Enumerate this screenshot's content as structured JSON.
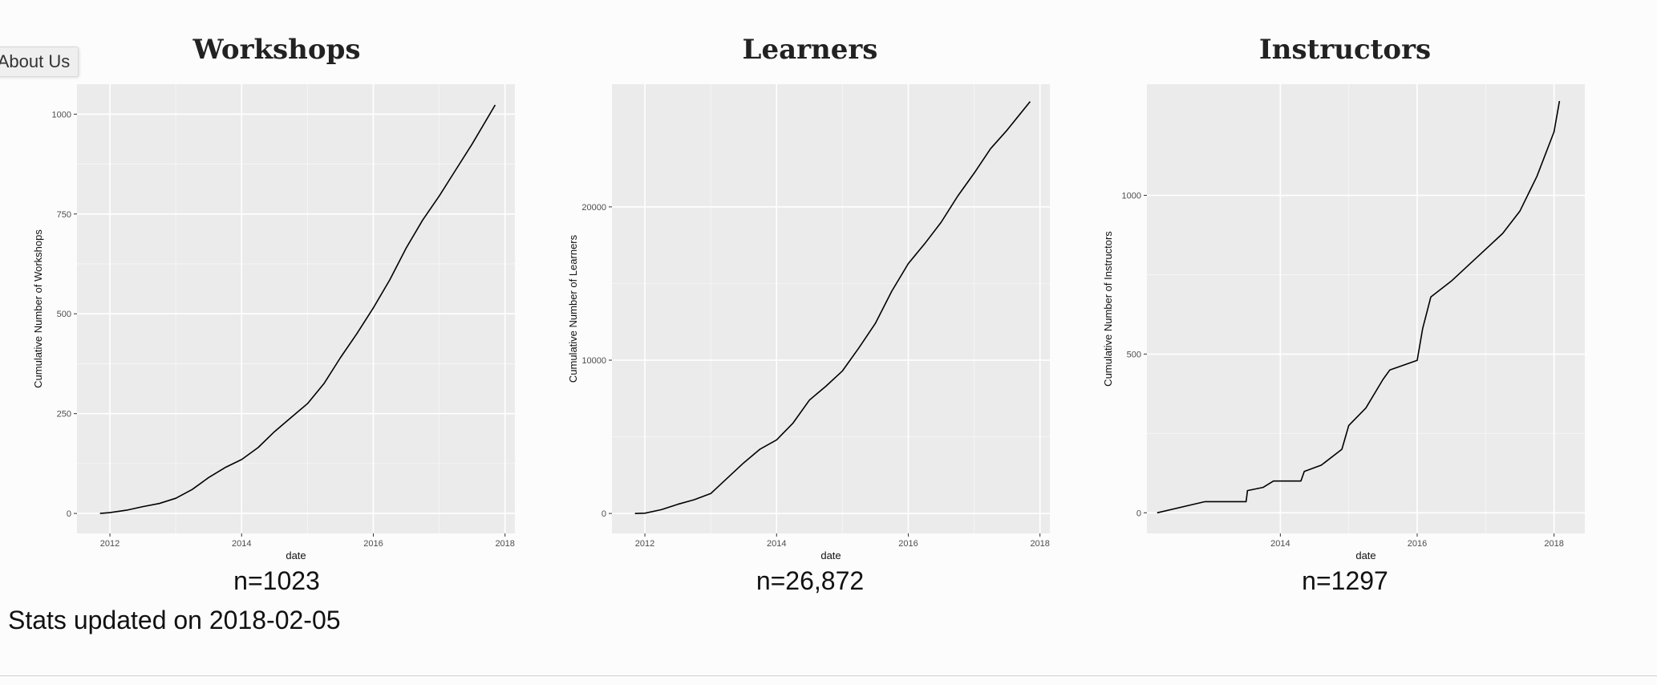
{
  "nav": {
    "about_label": "About Us"
  },
  "panels": [
    {
      "title": "Workshops",
      "count_label": "n=1023"
    },
    {
      "title": "Learners",
      "count_label": "n=26,872"
    },
    {
      "title": "Instructors",
      "count_label": "n=1297"
    }
  ],
  "footer": {
    "stats_updated": "Stats updated on 2018-02-05"
  },
  "colors": {
    "panel_bg": "#ebebeb",
    "grid": "#ffffff",
    "line": "#000000",
    "page_bg": "#fcfcfc"
  },
  "chart_data": [
    {
      "type": "line",
      "title": "Workshops",
      "xlabel": "date",
      "ylabel": "Cumulative Number of Workshops",
      "xlim": [
        2011.5,
        2018.15
      ],
      "ylim": [
        -50,
        1075
      ],
      "xticks": [
        2012,
        2014,
        2016,
        2018
      ],
      "yticks": [
        0,
        250,
        500,
        750,
        1000
      ],
      "grid": true,
      "legend": "none",
      "x": [
        2011.85,
        2012.0,
        2012.25,
        2012.5,
        2012.75,
        2013.0,
        2013.25,
        2013.5,
        2013.75,
        2014.0,
        2014.25,
        2014.5,
        2014.75,
        2015.0,
        2015.25,
        2015.5,
        2015.75,
        2016.0,
        2016.25,
        2016.5,
        2016.75,
        2017.0,
        2017.25,
        2017.5,
        2017.85
      ],
      "y": [
        0,
        2,
        8,
        17,
        25,
        38,
        60,
        90,
        115,
        135,
        165,
        205,
        240,
        275,
        325,
        390,
        450,
        515,
        585,
        665,
        735,
        795,
        860,
        925,
        1023
      ]
    },
    {
      "type": "line",
      "title": "Learners",
      "xlabel": "date",
      "ylabel": "Cumulative Number of Learners",
      "xlim": [
        2011.5,
        2018.15
      ],
      "ylim": [
        -1300,
        28000
      ],
      "xticks": [
        2012,
        2014,
        2016,
        2018
      ],
      "yticks": [
        0,
        10000,
        20000
      ],
      "grid": true,
      "legend": "none",
      "x": [
        2011.85,
        2012.0,
        2012.25,
        2012.5,
        2012.75,
        2013.0,
        2013.25,
        2013.5,
        2013.75,
        2014.0,
        2014.25,
        2014.5,
        2014.75,
        2015.0,
        2015.25,
        2015.5,
        2015.75,
        2016.0,
        2016.25,
        2016.5,
        2016.75,
        2017.0,
        2017.25,
        2017.5,
        2017.85
      ],
      "y": [
        0,
        20,
        250,
        600,
        900,
        1300,
        2300,
        3300,
        4200,
        4800,
        5900,
        7400,
        8300,
        9300,
        10800,
        12400,
        14500,
        16300,
        17600,
        19000,
        20700,
        22200,
        23800,
        25000,
        26872
      ]
    },
    {
      "type": "line",
      "title": "Instructors",
      "xlabel": "date",
      "ylabel": "Cumulative Number of Instructors",
      "xlim": [
        2012.05,
        2018.45
      ],
      "ylim": [
        -65,
        1350
      ],
      "xticks": [
        2014,
        2016,
        2018
      ],
      "yticks": [
        0,
        500,
        1000
      ],
      "grid": true,
      "legend": "none",
      "x": [
        2012.2,
        2012.9,
        2013.5,
        2013.52,
        2013.75,
        2013.9,
        2014.3,
        2014.35,
        2014.6,
        2014.9,
        2015.0,
        2015.25,
        2015.5,
        2015.6,
        2016.0,
        2016.08,
        2016.2,
        2016.5,
        2016.75,
        2017.0,
        2017.25,
        2017.5,
        2017.75,
        2018.0,
        2018.08
      ],
      "y": [
        0,
        35,
        35,
        70,
        80,
        100,
        100,
        130,
        150,
        200,
        275,
        330,
        420,
        450,
        480,
        580,
        680,
        730,
        780,
        830,
        880,
        950,
        1060,
        1200,
        1297
      ]
    }
  ]
}
